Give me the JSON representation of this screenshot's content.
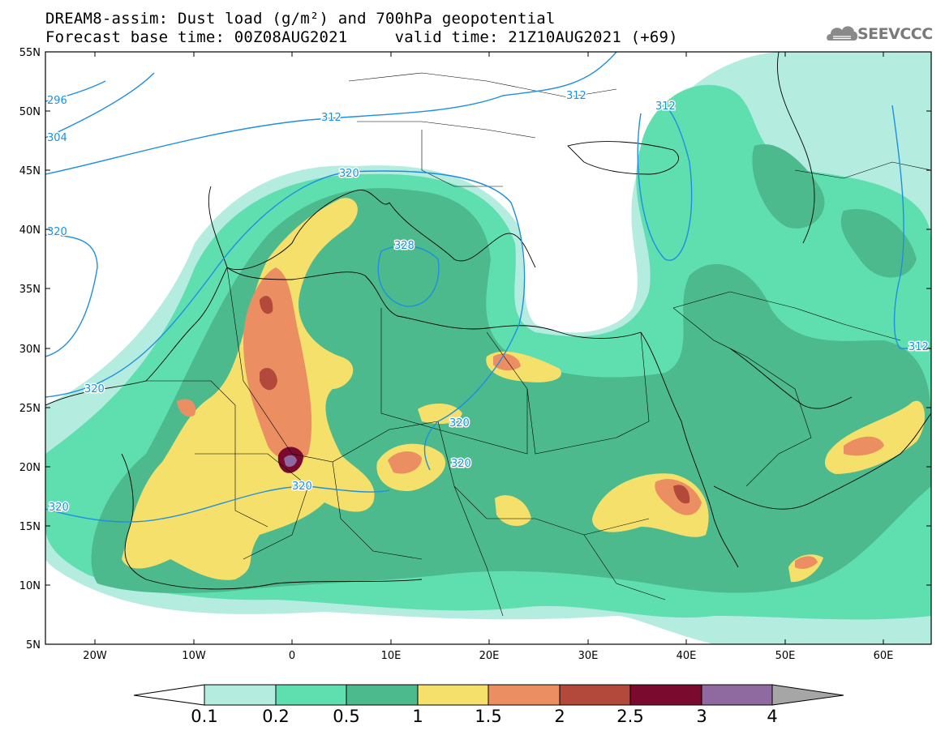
{
  "title_line1": "DREAM8-assim: Dust load (g/m²) and 700hPa geopotential",
  "title_line2": "Forecast base time: 00Z08AUG2021     valid time: 21Z10AUG2021 (+69)",
  "logo_text": "SEEVCCC",
  "axes": {
    "lon_labels": [
      "20W",
      "10W",
      "0",
      "10E",
      "20E",
      "30E",
      "40E",
      "50E",
      "60E"
    ],
    "lat_labels": [
      "55N",
      "50N",
      "45N",
      "40N",
      "35N",
      "30N",
      "25N",
      "20N",
      "15N",
      "10N",
      "5N"
    ]
  },
  "contour_labels": [
    "296",
    "304",
    "312",
    "312",
    "312",
    "320",
    "320",
    "320",
    "328",
    "320",
    "320",
    "320",
    "320",
    "312"
  ],
  "colorbar": {
    "ticks": [
      "0.1",
      "0.2",
      "0.5",
      "1",
      "1.5",
      "2",
      "2.5",
      "3",
      "4"
    ],
    "colors": [
      "#b4ecdf",
      "#5fdfb0",
      "#4cba8c",
      "#f4e06a",
      "#eb8e62",
      "#b2493a",
      "#7a0a2e",
      "#8f6aa0",
      "#a6a6a6"
    ]
  },
  "palette": {
    "low": "#b4ecdf",
    "mid": "#5fdfb0",
    "high": "#4cba8c",
    "yellow": "#f4e06a",
    "orange": "#eb8e62",
    "red": "#b2493a",
    "dark": "#7a0a2e",
    "purple": "#8f6aa0",
    "contour": "#1e8fe0"
  }
}
